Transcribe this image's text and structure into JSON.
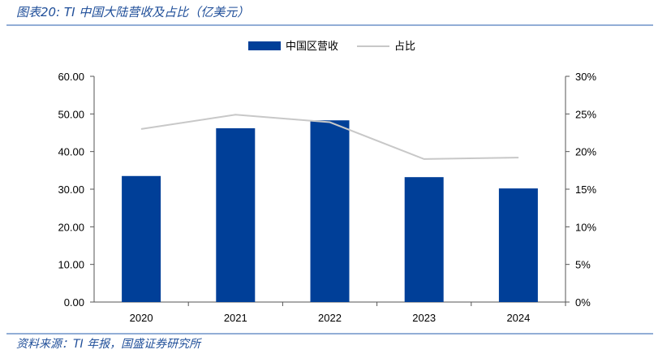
{
  "title": "图表20: TI 中国大陆营收及占比（亿美元）",
  "source": "资料来源：TI 年报，国盛证券研究所",
  "colors": {
    "bar": "#003f98",
    "line": "#c8c8c8",
    "rule": "#6f94c8"
  },
  "chart_data": {
    "type": "bar+line",
    "categories": [
      "2020",
      "2021",
      "2022",
      "2023",
      "2024"
    ],
    "series": [
      {
        "name": "中国区营收",
        "type": "bar",
        "axis": "left",
        "values": [
          33.5,
          46.2,
          48.3,
          33.2,
          30.2
        ]
      },
      {
        "name": "占比",
        "type": "line",
        "axis": "right",
        "values": [
          23.0,
          24.9,
          23.9,
          19.0,
          19.2
        ]
      }
    ],
    "y_left": {
      "range": [
        0,
        60
      ],
      "ticks": [
        "0.00",
        "10.00",
        "20.00",
        "30.00",
        "40.00",
        "50.00",
        "60.00"
      ]
    },
    "y_right": {
      "range": [
        0,
        30
      ],
      "ticks": [
        "0%",
        "5%",
        "10%",
        "15%",
        "20%",
        "25%",
        "30%"
      ]
    },
    "legend": "top-center",
    "grid": false
  }
}
